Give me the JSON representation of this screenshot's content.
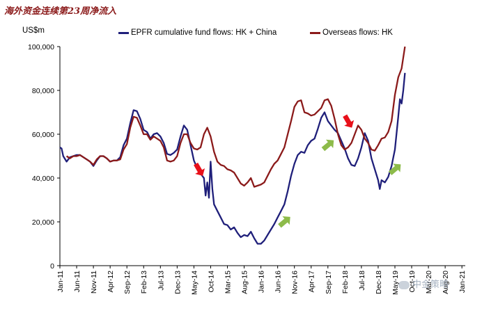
{
  "header": {
    "title": "海外资金连续第23周净流入"
  },
  "chart_data": {
    "type": "line",
    "ylabel": "US$m",
    "ylim": [
      0,
      100000
    ],
    "yticks": [
      0,
      20000,
      40000,
      60000,
      80000,
      100000
    ],
    "ytick_labels": [
      "0",
      "20,000",
      "40,000",
      "60,000",
      "80,000",
      "100,000"
    ],
    "x_range": [
      0,
      121
    ],
    "xticks": [
      0,
      5,
      10,
      15,
      20,
      25,
      30,
      35,
      40,
      45,
      50,
      55,
      60,
      65,
      70,
      75,
      80,
      85,
      90,
      95,
      100,
      105,
      110,
      115,
      120
    ],
    "xtick_labels": [
      "Jan-11",
      "Jun-11",
      "Nov-11",
      "Apr-12",
      "Sep-12",
      "Feb-13",
      "Jul-13",
      "Dec-13",
      "May-14",
      "Oct-14",
      "Mar-15",
      "Aug-15",
      "Jan-16",
      "Jun-16",
      "Nov-16",
      "Apr-17",
      "Sep-17",
      "Feb-18",
      "Jul-18",
      "Dec-18",
      "May-19",
      "Oct-19",
      "Mar-20",
      "Aug-20",
      "Jan-21"
    ],
    "legend": "top",
    "series": [
      {
        "name": "EPFR cumulative fund flows: HK + China",
        "color": "#1f1f7a",
        "points": [
          [
            0,
            54000
          ],
          [
            0.5,
            53500
          ],
          [
            1,
            50000
          ],
          [
            2,
            47500
          ],
          [
            3,
            49500
          ],
          [
            4,
            50000
          ],
          [
            5,
            50500
          ],
          [
            6,
            50500
          ],
          [
            7,
            49500
          ],
          [
            8,
            48500
          ],
          [
            9,
            47500
          ],
          [
            10,
            45500
          ],
          [
            11,
            48000
          ],
          [
            12,
            50000
          ],
          [
            13,
            50000
          ],
          [
            14,
            49000
          ],
          [
            15,
            47500
          ],
          [
            16,
            48000
          ],
          [
            17,
            48000
          ],
          [
            18,
            49500
          ],
          [
            19,
            55000
          ],
          [
            20,
            58000
          ],
          [
            21,
            65000
          ],
          [
            22,
            71000
          ],
          [
            23,
            70500
          ],
          [
            24,
            67000
          ],
          [
            25,
            62000
          ],
          [
            26,
            61000
          ],
          [
            27,
            58000
          ],
          [
            28,
            60000
          ],
          [
            29,
            60500
          ],
          [
            30,
            59000
          ],
          [
            31,
            56000
          ],
          [
            32,
            51000
          ],
          [
            33,
            50500
          ],
          [
            34,
            51500
          ],
          [
            35,
            53000
          ],
          [
            36,
            59000
          ],
          [
            37,
            64000
          ],
          [
            38,
            62000
          ],
          [
            39,
            55000
          ],
          [
            40,
            48000
          ],
          [
            41,
            44500
          ],
          [
            42,
            42000
          ],
          [
            43,
            40000
          ],
          [
            43.5,
            32000
          ],
          [
            44,
            38000
          ],
          [
            44.5,
            31000
          ],
          [
            45,
            47500
          ],
          [
            45.5,
            35000
          ],
          [
            46,
            28000
          ],
          [
            47,
            25000
          ],
          [
            48,
            22000
          ],
          [
            49,
            19000
          ],
          [
            50,
            18500
          ],
          [
            51,
            16500
          ],
          [
            52,
            17500
          ],
          [
            53,
            15000
          ],
          [
            54,
            13000
          ],
          [
            55,
            14000
          ],
          [
            56,
            13500
          ],
          [
            57,
            15500
          ],
          [
            58,
            12500
          ],
          [
            59,
            10000
          ],
          [
            60,
            10000
          ],
          [
            61,
            11500
          ],
          [
            62,
            14000
          ],
          [
            63,
            16500
          ],
          [
            64,
            19000
          ],
          [
            65,
            22000
          ],
          [
            66,
            25000
          ],
          [
            67,
            28000
          ],
          [
            68,
            34000
          ],
          [
            69,
            41000
          ],
          [
            70,
            46500
          ],
          [
            71,
            50500
          ],
          [
            72,
            52000
          ],
          [
            73,
            51500
          ],
          [
            74,
            55000
          ],
          [
            75,
            57000
          ],
          [
            76,
            58000
          ],
          [
            77,
            62500
          ],
          [
            78,
            67500
          ],
          [
            79,
            70000
          ],
          [
            80,
            66000
          ],
          [
            81,
            64000
          ],
          [
            82,
            62000
          ],
          [
            83,
            60500
          ],
          [
            84,
            57000
          ],
          [
            85,
            53500
          ],
          [
            86,
            49000
          ],
          [
            87,
            46000
          ],
          [
            88,
            45500
          ],
          [
            89,
            49000
          ],
          [
            90,
            54000
          ],
          [
            91,
            60500
          ],
          [
            92,
            57000
          ],
          [
            93,
            49000
          ],
          [
            94,
            44000
          ],
          [
            95,
            39000
          ],
          [
            95.5,
            35000
          ],
          [
            96,
            39000
          ],
          [
            97,
            38000
          ],
          [
            98,
            40500
          ],
          [
            99,
            45500
          ],
          [
            100,
            53000
          ],
          [
            101,
            68000
          ],
          [
            101.5,
            76000
          ],
          [
            102,
            74000
          ],
          [
            102.5,
            80000
          ],
          [
            103,
            88000
          ]
        ]
      },
      {
        "name": "Overseas flows: HK",
        "color": "#8b1a1a",
        "points": [
          [
            2,
            50000
          ],
          [
            3,
            49000
          ],
          [
            4,
            50000
          ],
          [
            5,
            50000
          ],
          [
            6,
            50500
          ],
          [
            7,
            49500
          ],
          [
            8,
            48500
          ],
          [
            9,
            47500
          ],
          [
            10,
            46000
          ],
          [
            11,
            48500
          ],
          [
            12,
            50000
          ],
          [
            13,
            50000
          ],
          [
            14,
            49000
          ],
          [
            15,
            47500
          ],
          [
            16,
            48000
          ],
          [
            17,
            48000
          ],
          [
            18,
            48500
          ],
          [
            19,
            53000
          ],
          [
            20,
            55500
          ],
          [
            21,
            63000
          ],
          [
            22,
            68000
          ],
          [
            23,
            67500
          ],
          [
            24,
            64000
          ],
          [
            25,
            60000
          ],
          [
            26,
            60000
          ],
          [
            27,
            57500
          ],
          [
            28,
            59000
          ],
          [
            29,
            58000
          ],
          [
            30,
            57000
          ],
          [
            31,
            54000
          ],
          [
            32,
            48000
          ],
          [
            33,
            47500
          ],
          [
            34,
            48000
          ],
          [
            35,
            50000
          ],
          [
            36,
            56000
          ],
          [
            37,
            60000
          ],
          [
            38,
            60000
          ],
          [
            39,
            56000
          ],
          [
            40,
            53500
          ],
          [
            41,
            53000
          ],
          [
            42,
            54000
          ],
          [
            43,
            60000
          ],
          [
            44,
            63000
          ],
          [
            45,
            59000
          ],
          [
            46,
            52000
          ],
          [
            47,
            47500
          ],
          [
            48,
            46000
          ],
          [
            49,
            45500
          ],
          [
            50,
            44000
          ],
          [
            51,
            43500
          ],
          [
            52,
            42500
          ],
          [
            53,
            40000
          ],
          [
            54,
            37500
          ],
          [
            55,
            36500
          ],
          [
            56,
            38000
          ],
          [
            57,
            40000
          ],
          [
            58,
            36000
          ],
          [
            59,
            36500
          ],
          [
            60,
            37000
          ],
          [
            61,
            38000
          ],
          [
            62,
            41000
          ],
          [
            63,
            44000
          ],
          [
            64,
            46500
          ],
          [
            65,
            48000
          ],
          [
            66,
            51000
          ],
          [
            67,
            54000
          ],
          [
            68,
            60000
          ],
          [
            69,
            66000
          ],
          [
            70,
            72500
          ],
          [
            71,
            75000
          ],
          [
            72,
            75500
          ],
          [
            73,
            70000
          ],
          [
            74,
            69500
          ],
          [
            75,
            68500
          ],
          [
            76,
            69000
          ],
          [
            77,
            70500
          ],
          [
            78,
            72000
          ],
          [
            79,
            75500
          ],
          [
            80,
            76000
          ],
          [
            81,
            73000
          ],
          [
            82,
            67000
          ],
          [
            83,
            60000
          ],
          [
            84,
            55000
          ],
          [
            85,
            53000
          ],
          [
            86,
            54000
          ],
          [
            87,
            56000
          ],
          [
            88,
            60000
          ],
          [
            89,
            64000
          ],
          [
            90,
            62000
          ],
          [
            91,
            58000
          ],
          [
            92,
            56000
          ],
          [
            93,
            53000
          ],
          [
            94,
            52500
          ],
          [
            95,
            55000
          ],
          [
            96,
            58000
          ],
          [
            97,
            58500
          ],
          [
            98,
            61000
          ],
          [
            99,
            66000
          ],
          [
            100,
            78000
          ],
          [
            101,
            86000
          ],
          [
            102,
            90000
          ],
          [
            103,
            100000
          ]
        ]
      }
    ],
    "annotations": [
      {
        "type": "arrow",
        "direction": "down-right",
        "color": "#e8101a",
        "x": 41.5,
        "y": 44000
      },
      {
        "type": "arrow",
        "direction": "up-right",
        "color": "#8dbb4a",
        "x": 67,
        "y": 20000
      },
      {
        "type": "arrow",
        "direction": "up-right",
        "color": "#8dbb4a",
        "x": 80,
        "y": 55000
      },
      {
        "type": "arrow",
        "direction": "down-right",
        "color": "#e8101a",
        "x": 86,
        "y": 66000
      },
      {
        "type": "arrow",
        "direction": "up-right",
        "color": "#8dbb4a",
        "x": 100,
        "y": 44000
      }
    ]
  },
  "watermark": {
    "text": "中金策略"
  }
}
